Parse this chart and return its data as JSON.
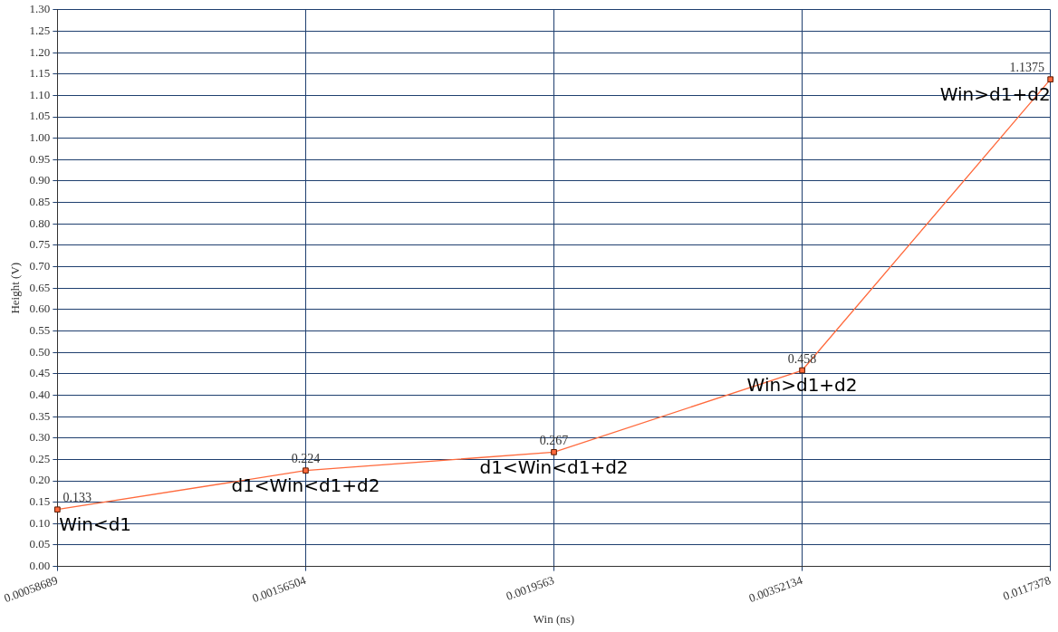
{
  "chart_data": {
    "type": "line",
    "xlabel": "Win (ns)",
    "ylabel": "Height (V)",
    "categories": [
      "0.00058689",
      "0.00156504",
      "0.0019563",
      "0.00352134",
      "0.0117378"
    ],
    "series": [
      {
        "color": "#ff6a3d",
        "values": [
          0.133,
          0.224,
          0.267,
          0.458,
          1.1375
        ]
      }
    ],
    "ylim": [
      0,
      1.3
    ],
    "yticks": [
      {
        "value": 0,
        "label": "0.00"
      },
      {
        "value": 0.05,
        "label": "0.05"
      },
      {
        "value": 0.1,
        "label": "0.10"
      },
      {
        "value": 0.15,
        "label": "0.15"
      },
      {
        "value": 0.2,
        "label": "0.20"
      },
      {
        "value": 0.25,
        "label": "0.25"
      },
      {
        "value": 0.3,
        "label": "0.30"
      },
      {
        "value": 0.35,
        "label": "0.35"
      },
      {
        "value": 0.4,
        "label": "0.40"
      },
      {
        "value": 0.45,
        "label": "0.45"
      },
      {
        "value": 0.5,
        "label": "0.50"
      },
      {
        "value": 0.55,
        "label": "0.55"
      },
      {
        "value": 0.6,
        "label": "0.60"
      },
      {
        "value": 0.65,
        "label": "0.65"
      },
      {
        "value": 0.7,
        "label": "0.70"
      },
      {
        "value": 0.75,
        "label": "0.75"
      },
      {
        "value": 0.8,
        "label": "0.80"
      },
      {
        "value": 0.85,
        "label": "0.85"
      },
      {
        "value": 0.9,
        "label": "0.90"
      },
      {
        "value": 0.95,
        "label": "0.95"
      },
      {
        "value": 1,
        "label": "1.00"
      },
      {
        "value": 1.05,
        "label": "1.05"
      },
      {
        "value": 1.1,
        "label": "1.10"
      },
      {
        "value": 1.15,
        "label": "1.15"
      },
      {
        "value": 1.2,
        "label": "1.20"
      },
      {
        "value": 1.25,
        "label": "1.25"
      },
      {
        "value": 1.3,
        "label": "1.30"
      }
    ],
    "annotations": [
      {
        "text": "Win<d1",
        "x": "0.00058689",
        "y": 0.133
      },
      {
        "text": "d1<Win<d1+d2",
        "x": "0.00156504",
        "y": 0.224
      },
      {
        "text": "d1<Win<d1+d2",
        "x": "0.0019563",
        "y": 0.267
      },
      {
        "text": "Win>d1+d2",
        "x": "0.00352134",
        "y": 0.458
      },
      {
        "text": "Win>d1+d2",
        "x": "0.0117378",
        "y": 1.1375
      }
    ],
    "grid": true,
    "legend": false,
    "marker": "square",
    "line_style": "solid",
    "data_labels": true
  }
}
